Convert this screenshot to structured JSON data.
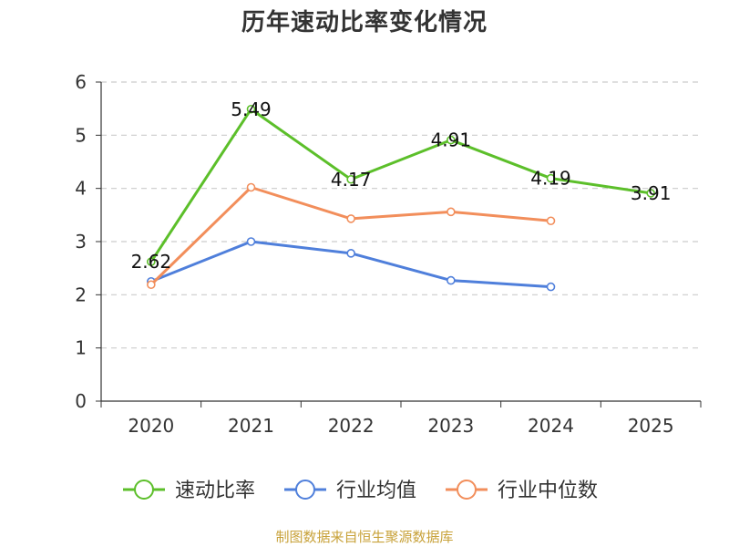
{
  "title": "历年速动比率变化情况",
  "source": "制图数据来自恒生聚源数据库",
  "chart_data": {
    "type": "line",
    "title": "历年速动比率变化情况",
    "categories": [
      "2020",
      "2021",
      "2022",
      "2023",
      "2024",
      "2025"
    ],
    "ylim": [
      0,
      6
    ],
    "yticks": [
      0,
      1,
      2,
      3,
      4,
      5,
      6
    ],
    "grid": true,
    "legend_position": "bottom",
    "series": [
      {
        "name": "速动比率",
        "color": "#5cbf2a",
        "values": [
          2.62,
          5.49,
          4.17,
          4.91,
          4.19,
          3.91
        ],
        "labels": [
          "2.62",
          "5.49",
          "4.17",
          "4.91",
          "4.19",
          "3.91"
        ]
      },
      {
        "name": "行业均值",
        "color": "#4f7fdb",
        "values": [
          2.25,
          3.0,
          2.78,
          2.27,
          2.15,
          null
        ]
      },
      {
        "name": "行业中位数",
        "color": "#f28e5b",
        "values": [
          2.19,
          4.02,
          3.43,
          3.56,
          3.39,
          null
        ]
      }
    ]
  }
}
